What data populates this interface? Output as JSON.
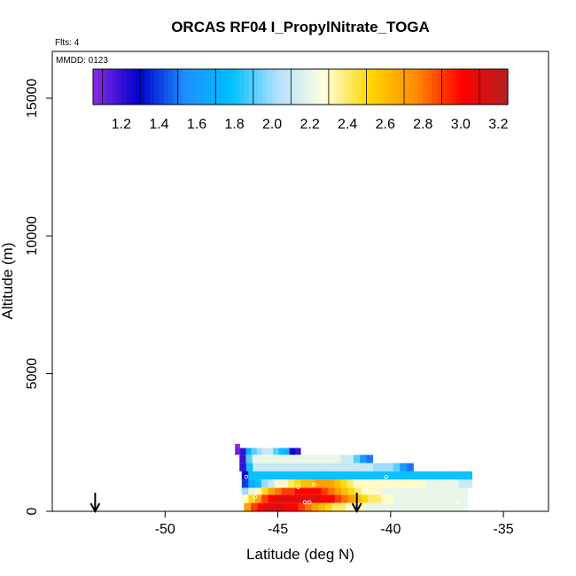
{
  "chart_data": {
    "type": "heatmap",
    "title": "ORCAS RF04 I_PropylNitrate_TOGA",
    "subtitle_flights": "Flts: 4",
    "subtitle_date": "MMDD: 0123",
    "xlabel": "Latitude (deg N)",
    "ylabel": "Altitude (m)",
    "xlim": [
      -55,
      -33
    ],
    "ylim": [
      0,
      16700
    ],
    "xticks": [
      -50,
      -45,
      -40,
      -35
    ],
    "yticks": [
      0,
      5000,
      10000,
      15000
    ],
    "grid": false,
    "colorbar": {
      "placement": "top-left-inside",
      "range": [
        1.05,
        3.25
      ],
      "tick_values": [
        1.2,
        1.4,
        1.6,
        1.8,
        2.0,
        2.2,
        2.4,
        2.6,
        2.8,
        3.0,
        3.2
      ],
      "tick_labels": [
        "1.2",
        "1.4",
        "1.6",
        "1.8",
        "2.0",
        "2.2",
        "2.4",
        "2.6",
        "2.8",
        "3.0",
        "3.2"
      ],
      "colors": [
        "#8a2be2",
        "#0000cd",
        "#1e90ff",
        "#00bfff",
        "#b0e0ff",
        "#ffffe0",
        "#ffd700",
        "#ff8c00",
        "#ff0000",
        "#b22222"
      ]
    },
    "arrows_latitude": [
      -53.1,
      -41.5
    ],
    "series": [
      {
        "alt_range": [
          2300,
          2450
        ],
        "lat_range": [
          -46.9,
          -46.7
        ],
        "values": [
          1.05
        ]
      },
      {
        "alt_range": [
          2050,
          2300
        ],
        "lat_range": [
          -46.9,
          -44.0
        ],
        "values": [
          1.1,
          1.2,
          1.7,
          1.9,
          2.0,
          2.1,
          2.1,
          1.9,
          1.8,
          1.7,
          1.3,
          1.2
        ]
      },
      {
        "alt_range": [
          1750,
          2050
        ],
        "lat_range": [
          -46.7,
          -40.8
        ],
        "values": [
          1.2,
          1.9,
          2.2,
          2.2,
          2.2,
          2.2,
          2.2,
          2.2,
          2.2,
          2.2,
          2.2,
          2.2,
          2.2,
          2.2,
          2.2,
          2.2,
          2.1,
          2.1,
          1.9,
          1.6,
          1.5
        ]
      },
      {
        "alt_range": [
          1450,
          1750
        ],
        "lat_range": [
          -46.7,
          -39.0
        ],
        "values": [
          1.2,
          1.8,
          2.1,
          2.1,
          2.1,
          2.1,
          2.1,
          2.1,
          2.1,
          2.1,
          2.1,
          2.1,
          2.1,
          2.1,
          2.1,
          2.1,
          2.1,
          2.1,
          2.1,
          2.1,
          2.0,
          2.0,
          2.0,
          1.9,
          1.6,
          1.5
        ]
      },
      {
        "alt_range": [
          1150,
          1450
        ],
        "lat_range": [
          -46.6,
          -36.4
        ],
        "values": [
          1.3,
          1.8,
          1.8,
          1.8,
          1.8,
          1.8,
          1.8,
          1.8,
          1.8,
          1.8,
          1.8,
          1.8,
          1.8,
          1.8,
          1.8,
          1.8,
          1.8,
          1.8,
          1.8,
          1.8,
          1.8,
          1.8,
          1.8,
          1.8,
          1.8,
          1.8,
          1.8,
          1.8,
          1.8,
          1.8,
          1.8,
          1.8,
          1.8,
          1.8,
          1.8
        ]
      },
      {
        "alt_range": [
          850,
          1150
        ],
        "lat_range": [
          -46.6,
          -36.4
        ],
        "values": [
          1.4,
          1.7,
          1.8,
          2.0,
          2.1,
          2.3,
          2.3,
          2.4,
          2.5,
          2.6,
          2.6,
          2.7,
          2.7,
          2.7,
          2.6,
          2.5,
          2.4,
          2.3,
          2.3,
          2.3,
          2.3,
          2.3,
          2.3,
          2.3,
          2.3,
          2.3,
          2.3,
          2.3,
          2.2,
          2.2,
          2.2,
          2.2,
          2.2,
          2.1,
          2.1
        ]
      },
      {
        "alt_range": [
          600,
          850
        ],
        "lat_range": [
          -46.6,
          -36.6
        ],
        "values": [
          2.0,
          2.2,
          2.3,
          2.5,
          2.7,
          2.8,
          2.9,
          2.9,
          3.0,
          3.0,
          3.0,
          3.0,
          2.9,
          2.8,
          2.7,
          2.6,
          2.5,
          2.4,
          2.3,
          2.3,
          2.3,
          2.2,
          2.2,
          2.2,
          2.2,
          2.2,
          2.2,
          2.2,
          2.2,
          2.2,
          2.2,
          2.2,
          2.2,
          2.2
        ]
      },
      {
        "alt_range": [
          300,
          600
        ],
        "lat_range": [
          -46.6,
          -36.6
        ],
        "values": [
          2.3,
          2.5,
          2.7,
          2.9,
          3.0,
          3.1,
          3.1,
          3.1,
          3.1,
          3.1,
          3.1,
          3.1,
          3.0,
          3.0,
          2.9,
          2.8,
          2.7,
          2.6,
          2.5,
          2.4,
          2.4,
          2.3,
          2.3,
          2.2,
          2.2,
          2.2,
          2.2,
          2.2,
          2.2,
          2.2,
          2.2,
          2.2,
          2.2,
          2.2
        ]
      },
      {
        "alt_range": [
          0,
          300
        ],
        "lat_range": [
          -46.5,
          -36.6
        ],
        "values": [
          2.7,
          2.9,
          3.0,
          3.1,
          3.1,
          3.1,
          3.0,
          3.0,
          2.9,
          2.8,
          2.7,
          2.6,
          2.5,
          2.4,
          2.4,
          2.3,
          2.3,
          2.3,
          2.2,
          2.2,
          2.2,
          2.2,
          2.2,
          2.2,
          2.2,
          2.2,
          2.2,
          2.2,
          2.2,
          2.2,
          2.2,
          2.2,
          2.2
        ]
      }
    ]
  }
}
